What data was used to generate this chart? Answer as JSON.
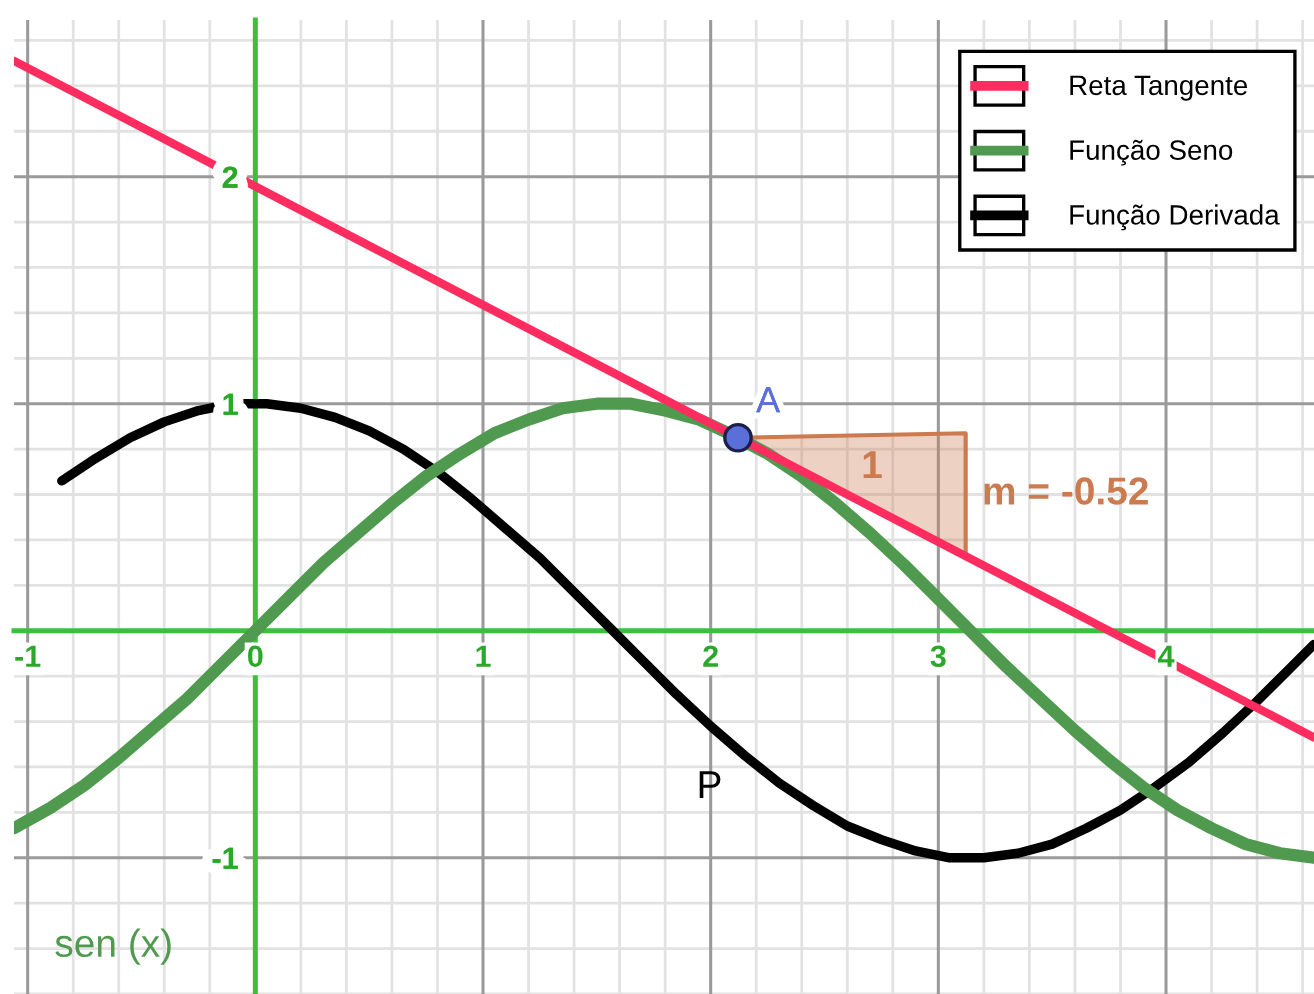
{
  "chart_data": {
    "type": "line",
    "series": [
      {
        "name": "Reta Tangente",
        "color": "#ff2d5f",
        "x": [
          -1.06,
          4.65
        ],
        "values": [
          2.51,
          -0.47
        ]
      },
      {
        "name": "Função Seno",
        "color": "#4f9a4f",
        "x": [
          -1.06,
          -0.9,
          -0.75,
          -0.6,
          -0.45,
          -0.3,
          -0.15,
          0,
          0.15,
          0.3,
          0.45,
          0.6,
          0.75,
          0.9,
          1.05,
          1.2,
          1.35,
          1.5,
          1.65,
          1.8,
          1.95,
          2.1,
          2.25,
          2.4,
          2.55,
          2.7,
          2.85,
          3,
          3.15,
          3.3,
          3.45,
          3.6,
          3.75,
          3.9,
          4.05,
          4.2,
          4.35,
          4.5,
          4.65
        ],
        "values": [
          -0.87,
          -0.78,
          -0.68,
          -0.56,
          -0.43,
          -0.3,
          -0.15,
          0,
          0.15,
          0.3,
          0.43,
          0.56,
          0.68,
          0.78,
          0.87,
          0.93,
          0.98,
          1,
          1,
          0.97,
          0.93,
          0.86,
          0.78,
          0.68,
          0.56,
          0.43,
          0.29,
          0.14,
          -0.01,
          -0.16,
          -0.3,
          -0.44,
          -0.57,
          -0.69,
          -0.79,
          -0.87,
          -0.94,
          -0.98,
          -1
        ]
      },
      {
        "name": "Função Derivada",
        "color": "#000000",
        "x": [
          -0.85,
          -0.7,
          -0.55,
          -0.4,
          -0.25,
          -0.1,
          0.05,
          0.2,
          0.35,
          0.5,
          0.65,
          0.8,
          0.95,
          1.1,
          1.25,
          1.4,
          1.55,
          1.7,
          1.85,
          2,
          2.15,
          2.3,
          2.45,
          2.6,
          2.75,
          2.9,
          3.05,
          3.2,
          3.35,
          3.5,
          3.65,
          3.8,
          3.95,
          4.1,
          4.25,
          4.4,
          4.55,
          4.65
        ],
        "values": [
          0.66,
          0.76,
          0.85,
          0.92,
          0.97,
          1,
          1,
          0.98,
          0.94,
          0.88,
          0.8,
          0.7,
          0.58,
          0.45,
          0.32,
          0.17,
          0.02,
          -0.13,
          -0.28,
          -0.42,
          -0.55,
          -0.67,
          -0.77,
          -0.86,
          -0.92,
          -0.97,
          -1,
          -1,
          -0.98,
          -0.94,
          -0.87,
          -0.79,
          -0.69,
          -0.58,
          -0.45,
          -0.31,
          -0.16,
          -0.06
        ]
      },
      {
        "type": "scatter",
        "name": "A",
        "marker": "circle",
        "color": "#5b6fd9",
        "x": [
          2.12
        ],
        "values": [
          0.85
        ]
      },
      {
        "type": "area",
        "color": "#cc7a50",
        "x": [
          2.12,
          3.12,
          3.12
        ],
        "values": [
          0.85,
          0.87,
          0.33
        ]
      }
    ],
    "xlim": [
      -1.06,
      4.65
    ],
    "ylim": [
      -1.6,
      2.69
    ],
    "xticks": [
      -1,
      0,
      1,
      2,
      3,
      4
    ],
    "yticks": [
      -1,
      1,
      2
    ],
    "grid": true,
    "legend": "top right",
    "annotations": [
      "1",
      "m = -0.52",
      "P",
      "sen (x)"
    ]
  }
}
